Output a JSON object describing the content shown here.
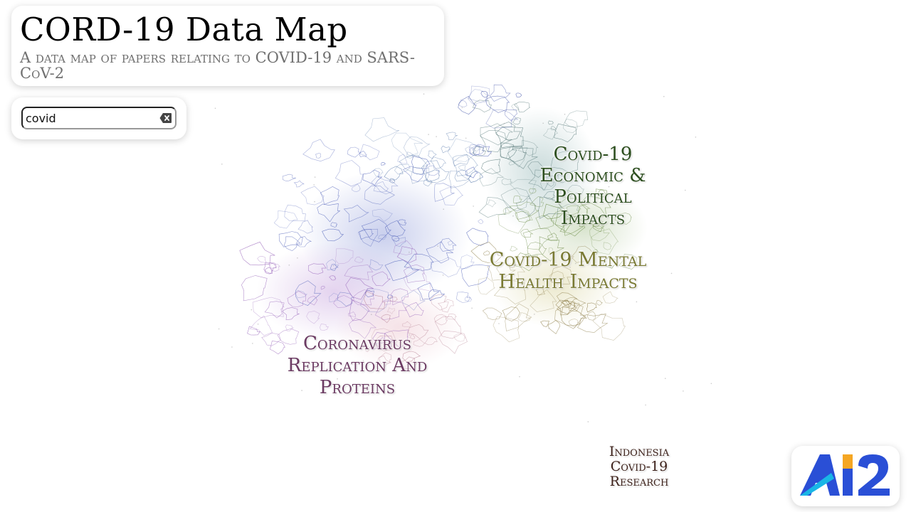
{
  "header": {
    "title": "CORD-19 Data Map",
    "subtitle": "A data map of papers relating to COVID-19 and SARS-CoV-2"
  },
  "search": {
    "value": "covid",
    "clear_icon": "backspace-clear-icon"
  },
  "map": {
    "clusters": [
      {
        "label": "Covid-19 Economic & Political Impacts",
        "color": "#2d4f1f"
      },
      {
        "label": "Covid-19 Mental Health Impacts",
        "color": "#7a7a33"
      },
      {
        "label": "Coronavirus Replication And Proteins",
        "color": "#6b3a62"
      },
      {
        "label": "Indonesia Covid-19 Research",
        "color": "#3b1f18"
      }
    ]
  },
  "logo": {
    "text": "AI2",
    "icon": "ai2-logo-icon",
    "colors": {
      "primary": "#2a4fd6",
      "accent": "#f5a623",
      "cyan": "#19b6e6"
    }
  }
}
